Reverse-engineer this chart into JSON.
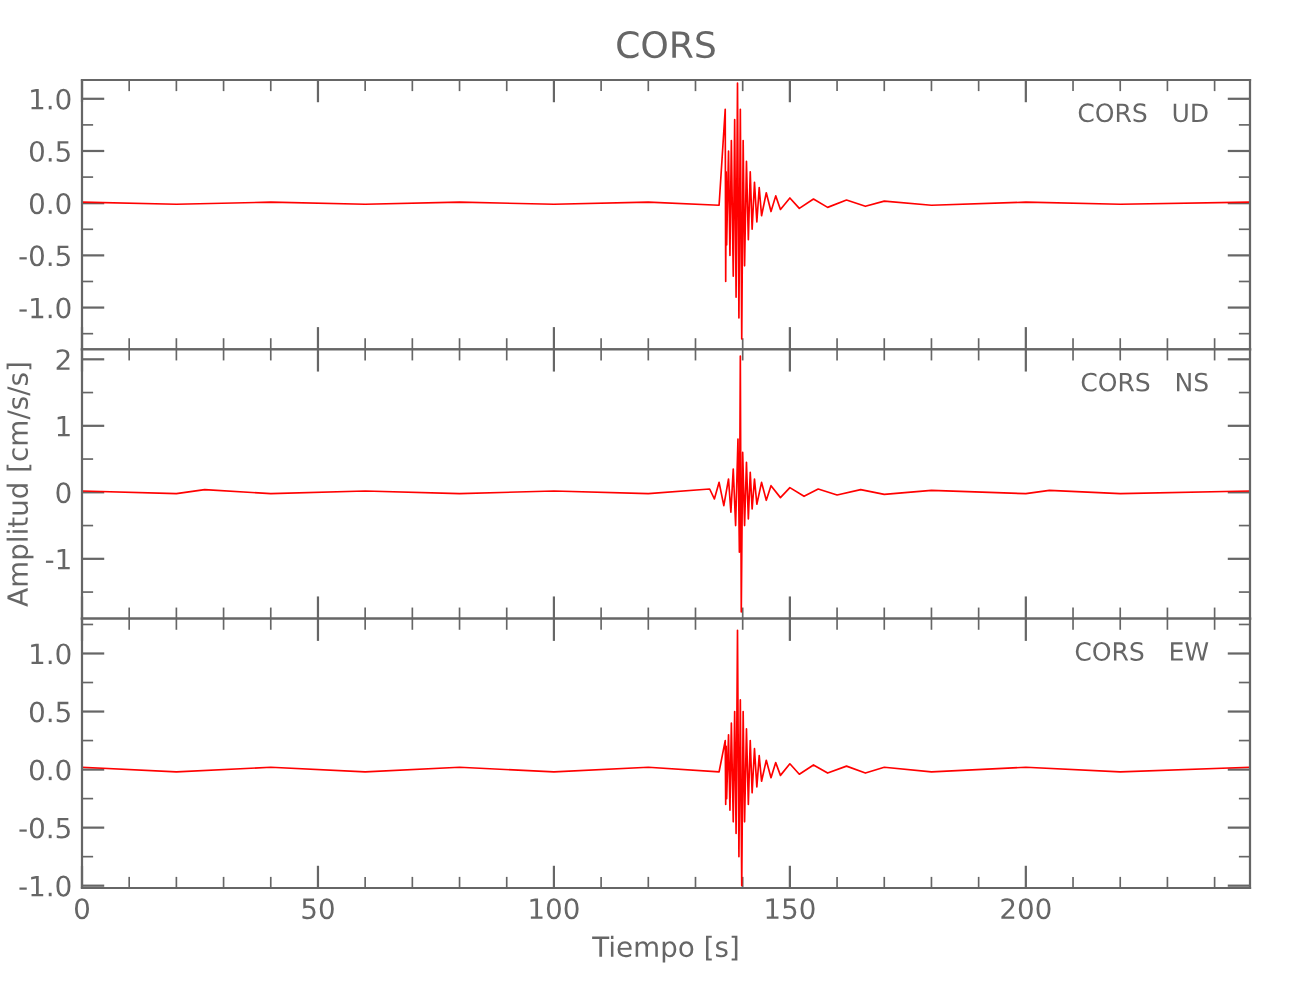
{
  "chart_data": [
    {
      "type": "line",
      "title": "CORS",
      "annotations": [
        "CORS   UD"
      ],
      "tick_labels": "y",
      "xlim": [
        0,
        247.5
      ],
      "xticks": [
        {
          "value": 0,
          "label": null
        },
        {
          "value": 50,
          "label": null
        },
        {
          "value": 100,
          "label": null
        },
        {
          "value": 150,
          "label": null
        },
        {
          "value": 200,
          "label": null
        }
      ],
      "ylim": [
        -1.4,
        1.18
      ],
      "yticks": [
        {
          "value": 1,
          "label": "1.0"
        },
        {
          "value": 0.5,
          "label": "0.5"
        },
        {
          "value": 0,
          "label": "0.0"
        },
        {
          "value": -0.5,
          "label": "-0.5"
        },
        {
          "value": -1,
          "label": "-1.0"
        }
      ],
      "series": [
        {
          "color": "#ff0000",
          "x": [
            0,
            20,
            40,
            60,
            80,
            100,
            120,
            135,
            136.3,
            136.4,
            136.5,
            136.6,
            137,
            137.3,
            137.6,
            138,
            138.3,
            138.6,
            138.9,
            139.2,
            139.5,
            139.8,
            140.1,
            140.4,
            140.8,
            141.2,
            141.6,
            142,
            142.5,
            143,
            143.5,
            144,
            145,
            146,
            147,
            148,
            150,
            152,
            155,
            158,
            162,
            166,
            170,
            180,
            200,
            220,
            247.5
          ],
          "values": [
            0.01,
            -0.01,
            0.01,
            -0.01,
            0.01,
            -0.01,
            0.01,
            -0.02,
            0.9,
            -0.75,
            0.3,
            -0.4,
            0.5,
            -0.5,
            0.6,
            -0.7,
            0.8,
            -0.9,
            1.15,
            -1.1,
            0.9,
            -1.3,
            0.6,
            -0.6,
            0.4,
            -0.35,
            0.3,
            -0.25,
            0.2,
            -0.18,
            0.15,
            -0.12,
            0.1,
            -0.08,
            0.07,
            -0.06,
            0.05,
            -0.05,
            0.04,
            -0.04,
            0.03,
            -0.03,
            0.02,
            -0.02,
            0.01,
            -0.01,
            0.01
          ]
        }
      ]
    },
    {
      "type": "line",
      "annotations": [
        "CORS   NS"
      ],
      "ylabel": "Amplitud [cm/s/s]",
      "tick_labels": "y",
      "xlim": [
        0,
        247.5
      ],
      "xticks": [
        {
          "value": 0,
          "label": null
        },
        {
          "value": 50,
          "label": null
        },
        {
          "value": 100,
          "label": null
        },
        {
          "value": 150,
          "label": null
        },
        {
          "value": 200,
          "label": null
        }
      ],
      "ylim": [
        -1.9,
        2.15
      ],
      "yticks": [
        2,
        1,
        0,
        -1
      ],
      "series": [
        {
          "color": "#ff0000",
          "x": [
            0,
            20,
            26,
            40,
            60,
            80,
            100,
            120,
            133,
            134,
            135,
            136,
            137,
            137.5,
            138,
            138.5,
            139,
            139.3,
            139.5,
            139.7,
            140,
            140.4,
            140.8,
            141.2,
            141.6,
            142,
            142.5,
            143,
            144,
            145,
            146,
            148,
            150,
            153,
            156,
            160,
            165,
            170,
            180,
            200,
            205,
            220,
            247.5
          ],
          "values": [
            0.02,
            -0.02,
            0.04,
            -0.02,
            0.02,
            -0.02,
            0.02,
            -0.02,
            0.05,
            -0.1,
            0.15,
            -0.2,
            0.2,
            -0.3,
            0.35,
            -0.5,
            0.8,
            -0.9,
            2.05,
            -1.8,
            0.6,
            -0.5,
            0.45,
            -0.4,
            0.3,
            -0.25,
            0.2,
            -0.18,
            0.15,
            -0.12,
            0.1,
            -0.08,
            0.07,
            -0.06,
            0.05,
            -0.04,
            0.04,
            -0.03,
            0.03,
            -0.02,
            0.03,
            -0.02,
            0.02
          ]
        }
      ]
    },
    {
      "type": "line",
      "annotations": [
        "CORS   EW"
      ],
      "xlabel": "Tiempo [s]",
      "xlim": [
        0,
        247.5
      ],
      "xticks": [
        0,
        50,
        100,
        150,
        200
      ],
      "ylim": [
        -1.02,
        1.3
      ],
      "yticks": [
        {
          "value": 1,
          "label": "1.0"
        },
        {
          "value": 0.5,
          "label": "0.5"
        },
        {
          "value": 0,
          "label": "0.0"
        },
        {
          "value": -0.5,
          "label": "-0.5"
        },
        {
          "value": -1,
          "label": "-1.0"
        }
      ],
      "series": [
        {
          "color": "#ff0000",
          "x": [
            0,
            20,
            40,
            60,
            80,
            100,
            120,
            135,
            136.3,
            136.4,
            136.5,
            136.6,
            137,
            137.3,
            137.6,
            138,
            138.3,
            138.6,
            138.9,
            139.2,
            139.5,
            139.8,
            140.1,
            140.4,
            140.8,
            141.2,
            141.6,
            142,
            142.5,
            143,
            143.5,
            144,
            145,
            146,
            147,
            148,
            150,
            152,
            155,
            158,
            162,
            166,
            170,
            180,
            200,
            220,
            247.5
          ],
          "values": [
            0.02,
            -0.02,
            0.02,
            -0.02,
            0.02,
            -0.02,
            0.02,
            -0.02,
            0.25,
            -0.3,
            0.2,
            -0.25,
            0.3,
            -0.35,
            0.4,
            -0.45,
            0.5,
            -0.55,
            1.2,
            -0.75,
            0.6,
            -1.0,
            0.5,
            -0.45,
            0.35,
            -0.3,
            0.25,
            -0.2,
            0.18,
            -0.15,
            0.12,
            -0.1,
            0.08,
            -0.07,
            0.06,
            -0.05,
            0.05,
            -0.04,
            0.04,
            -0.03,
            0.03,
            -0.03,
            0.02,
            -0.02,
            0.02,
            -0.02,
            0.02
          ]
        }
      ]
    }
  ]
}
